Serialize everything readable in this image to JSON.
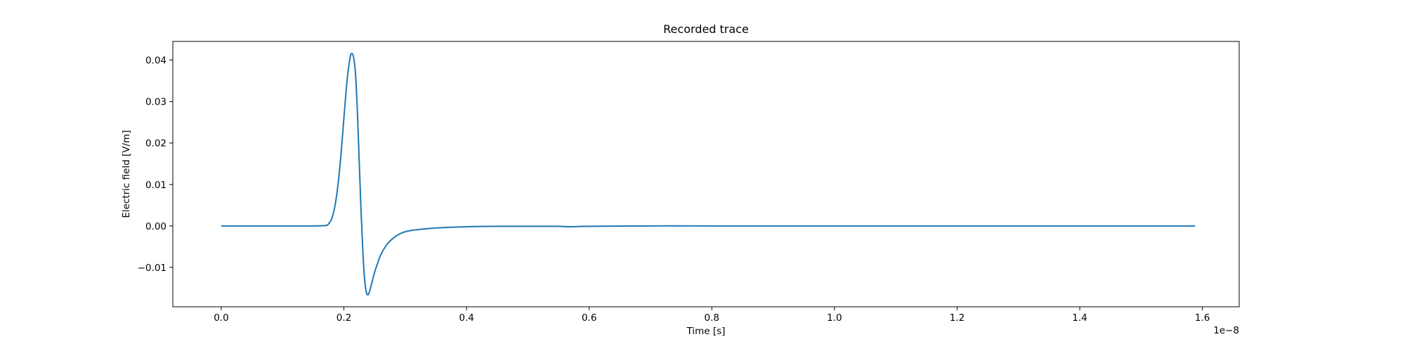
{
  "chart_data": {
    "type": "line",
    "title": "Recorded trace",
    "xlabel": "Time [s]",
    "ylabel": "Electric field [V/m]",
    "x_offset_text": "1e−8",
    "x_scale_exponent": -8,
    "xlim": [
      -0.079,
      1.66
    ],
    "ylim": [
      -0.0195,
      0.0445
    ],
    "x_ticks": [
      0.0,
      0.2,
      0.4,
      0.6,
      0.8,
      1.0,
      1.2,
      1.4,
      1.6
    ],
    "x_tick_labels": [
      "0.0",
      "0.2",
      "0.4",
      "0.6",
      "0.8",
      "1.0",
      "1.2",
      "1.4",
      "1.6"
    ],
    "y_ticks": [
      -0.01,
      0.0,
      0.01,
      0.02,
      0.03,
      0.04
    ],
    "y_tick_labels": [
      "−0.01",
      "0.00",
      "0.01",
      "0.02",
      "0.03",
      "0.04"
    ],
    "grid": false,
    "legend": "none",
    "line_color": "#1f77b4",
    "series": [
      {
        "x": [
          0.0,
          0.05,
          0.1,
          0.15,
          0.17,
          0.175,
          0.18,
          0.185,
          0.19,
          0.195,
          0.2,
          0.205,
          0.21,
          0.213,
          0.216,
          0.219,
          0.222,
          0.225,
          0.228,
          0.231,
          0.234,
          0.237,
          0.24,
          0.243,
          0.246,
          0.25,
          0.255,
          0.26,
          0.27,
          0.28,
          0.29,
          0.3,
          0.32,
          0.35,
          0.4,
          0.45,
          0.5,
          0.55,
          0.565,
          0.6,
          0.7,
          0.8,
          1.0,
          1.2,
          1.4,
          1.588
        ],
        "y": [
          0.0,
          0.0,
          0.0,
          0.0,
          0.0001,
          0.0005,
          0.0017,
          0.0045,
          0.0095,
          0.0168,
          0.026,
          0.0348,
          0.0405,
          0.0416,
          0.0405,
          0.0365,
          0.0275,
          0.0155,
          0.0035,
          -0.0065,
          -0.0133,
          -0.0162,
          -0.0165,
          -0.0152,
          -0.0135,
          -0.0112,
          -0.009,
          -0.007,
          -0.0045,
          -0.003,
          -0.002,
          -0.0014,
          -0.0009,
          -0.0005,
          -0.0002,
          -0.0001,
          -0.0001,
          -0.0001,
          -0.0002,
          -0.0001,
          0.0,
          0.0,
          0.0,
          0.0,
          0.0,
          0.0
        ]
      }
    ]
  }
}
